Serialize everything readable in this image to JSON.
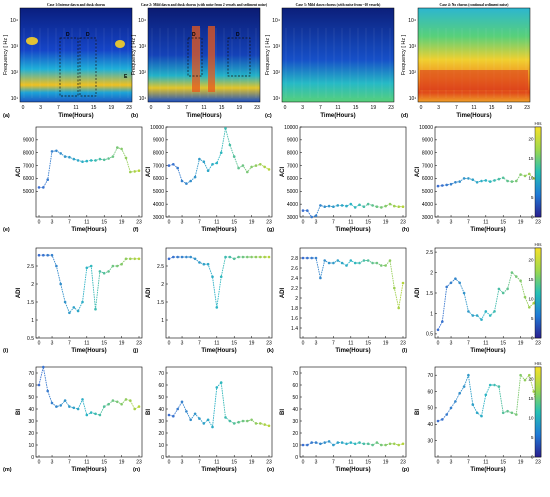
{
  "figure": {
    "row_spectro": {
      "xlabel": "Time(Hours)",
      "ylabel": "Frequency [ Hz ]",
      "x_ticks": [
        "0",
        "3",
        "7",
        "11",
        "15",
        "19",
        "23"
      ],
      "y_ticks": [
        "10¹",
        "10²",
        "10³",
        "10⁴"
      ],
      "panels": [
        {
          "tag": "(a)",
          "title": "Case 1:Intense dawn and dusk chorus",
          "box_labels": [
            "D",
            "D",
            "E"
          ],
          "style": "case1"
        },
        {
          "tag": "(b)",
          "title": "Case 2: Mild dawn and dusk chorus (with noise from 2 vessels and sediment noise)",
          "box_labels": [
            "D",
            "D"
          ],
          "style": "case2"
        },
        {
          "tag": "(c)",
          "title": "Case 3: Mild dawn chorus (with noise from ~10 vessels)",
          "box_labels": [],
          "style": "case3"
        },
        {
          "tag": "(d)",
          "title": "Case 4: No chorus (continual sediment noise)",
          "box_labels": [],
          "style": "case4"
        }
      ]
    },
    "colorbar": {
      "unit": "Hrs",
      "ticks": [
        "0",
        "5",
        "10",
        "15",
        "20"
      ],
      "range": [
        0,
        23
      ]
    },
    "colors": {
      "cmap_start": "#2a1f8f",
      "cmap_mid": "#26c0b5",
      "cmap_end": "#f6e12a",
      "line": "#3a4f9e"
    }
  },
  "chart_data": [
    {
      "type": "line",
      "tag": "(e)",
      "ylabel": "ACI",
      "xlabel": "Time(Hours)",
      "ylim": [
        3000,
        10000
      ],
      "y_ticks": [
        5000,
        6000,
        7000,
        8000,
        9000
      ],
      "x": [
        0,
        1,
        2,
        3,
        4,
        5,
        6,
        7,
        8,
        9,
        10,
        11,
        12,
        13,
        14,
        15,
        16,
        17,
        18,
        19,
        20,
        21,
        22,
        23
      ],
      "values": [
        5300,
        5300,
        5900,
        8100,
        8150,
        7950,
        7700,
        7650,
        7500,
        7400,
        7300,
        7350,
        7400,
        7400,
        7500,
        7450,
        7550,
        7700,
        8400,
        8300,
        7600,
        6500,
        6550,
        6600
      ]
    },
    {
      "type": "line",
      "tag": "(f)",
      "ylabel": "ACI",
      "xlabel": "Time(Hours)",
      "ylim": [
        3000,
        10000
      ],
      "y_ticks": [
        3000,
        4000,
        5000,
        6000,
        7000,
        8000,
        9000,
        10000
      ],
      "x": [
        0,
        1,
        2,
        3,
        4,
        5,
        6,
        7,
        8,
        9,
        10,
        11,
        12,
        13,
        14,
        15,
        16,
        17,
        18,
        19,
        20,
        21,
        22,
        23
      ],
      "values": [
        7000,
        7100,
        6800,
        5800,
        5600,
        5800,
        6100,
        7500,
        7300,
        6600,
        7100,
        7200,
        8000,
        9900,
        8600,
        7700,
        6800,
        7000,
        6500,
        6900,
        7000,
        7100,
        6900,
        6700
      ]
    },
    {
      "type": "line",
      "tag": "(g)",
      "ylabel": "ACI",
      "xlabel": "Time(Hours)",
      "ylim": [
        3000,
        10000
      ],
      "y_ticks": [
        3000,
        4000,
        5000,
        6000,
        7000,
        8000,
        9000,
        10000
      ],
      "x": [
        0,
        1,
        2,
        3,
        4,
        5,
        6,
        7,
        8,
        9,
        10,
        11,
        12,
        13,
        14,
        15,
        16,
        17,
        18,
        19,
        20,
        21,
        22,
        23
      ],
      "values": [
        3500,
        3500,
        3000,
        3100,
        3900,
        3800,
        3850,
        3800,
        3900,
        3900,
        3850,
        4000,
        3750,
        3950,
        3800,
        4000,
        3900,
        3800,
        3750,
        3850,
        4000,
        3850,
        3800,
        3800
      ]
    },
    {
      "type": "line",
      "tag": "(h)",
      "ylabel": "ACI",
      "xlabel": "Time(Hours)",
      "ylim": [
        3000,
        10000
      ],
      "y_ticks": [
        3000,
        4000,
        5000,
        6000,
        7000,
        8000,
        9000,
        10000
      ],
      "x": [
        0,
        1,
        2,
        3,
        4,
        5,
        6,
        7,
        8,
        9,
        10,
        11,
        12,
        13,
        14,
        15,
        16,
        17,
        18,
        19,
        20,
        21,
        22,
        23
      ],
      "values": [
        5400,
        5450,
        5500,
        5550,
        5700,
        5750,
        6000,
        6000,
        5900,
        5700,
        5800,
        5850,
        5750,
        5850,
        5950,
        6050,
        5800,
        5750,
        5800,
        6300,
        6200,
        6350,
        6000,
        5950
      ]
    },
    {
      "type": "line",
      "tag": "(i)",
      "ylabel": "ADI",
      "xlabel": "Time(Hours)",
      "ylim": [
        0.5,
        3.0
      ],
      "y_ticks": [
        0.5,
        1,
        1.5,
        2,
        2.5
      ],
      "x": [
        0,
        1,
        2,
        3,
        4,
        5,
        6,
        7,
        8,
        9,
        10,
        11,
        12,
        13,
        14,
        15,
        16,
        17,
        18,
        19,
        20,
        21,
        22,
        23
      ],
      "values": [
        2.8,
        2.8,
        2.8,
        2.8,
        2.5,
        2.0,
        1.5,
        1.2,
        1.35,
        1.25,
        1.5,
        2.45,
        2.5,
        1.3,
        2.35,
        2.3,
        2.35,
        2.5,
        2.5,
        2.55,
        2.7,
        2.7,
        2.7,
        2.7
      ]
    },
    {
      "type": "line",
      "tag": "(j)",
      "ylabel": "ADI",
      "xlabel": "Time(Hours)",
      "ylim": [
        0.5,
        3.0
      ],
      "y_ticks": [
        1,
        1.5,
        2,
        2.5
      ],
      "x": [
        0,
        1,
        2,
        3,
        4,
        5,
        6,
        7,
        8,
        9,
        10,
        11,
        12,
        13,
        14,
        15,
        16,
        17,
        18,
        19,
        20,
        21,
        22,
        23
      ],
      "values": [
        2.7,
        2.75,
        2.75,
        2.75,
        2.75,
        2.75,
        2.7,
        2.6,
        2.55,
        2.55,
        2.2,
        1.35,
        2.2,
        2.75,
        2.75,
        2.7,
        2.75,
        2.75,
        2.75,
        2.75,
        2.75,
        2.75,
        2.75,
        2.75
      ]
    },
    {
      "type": "line",
      "tag": "(k)",
      "ylabel": "ADI",
      "xlabel": "Time(Hours)",
      "ylim": [
        1.2,
        3.0
      ],
      "y_ticks": [
        1.4,
        1.6,
        1.8,
        2,
        2.2,
        2.4,
        2.6,
        2.8
      ],
      "x": [
        0,
        1,
        2,
        3,
        4,
        5,
        6,
        7,
        8,
        9,
        10,
        11,
        12,
        13,
        14,
        15,
        16,
        17,
        18,
        19,
        20,
        21,
        22,
        23
      ],
      "values": [
        2.8,
        2.8,
        2.8,
        2.8,
        2.4,
        2.75,
        2.7,
        2.7,
        2.75,
        2.7,
        2.65,
        2.75,
        2.7,
        2.7,
        2.75,
        2.75,
        2.7,
        2.7,
        2.65,
        2.65,
        2.75,
        2.2,
        1.8,
        2.3
      ]
    },
    {
      "type": "line",
      "tag": "(l)",
      "ylabel": "ADI",
      "xlabel": "Time(Hours)",
      "ylim": [
        0.4,
        2.6
      ],
      "y_ticks": [
        0.5,
        1,
        1.5,
        2,
        2.5
      ],
      "x": [
        0,
        1,
        2,
        3,
        4,
        5,
        6,
        7,
        8,
        9,
        10,
        11,
        12,
        13,
        14,
        15,
        16,
        17,
        18,
        19,
        20,
        21,
        22,
        23
      ],
      "values": [
        0.6,
        0.8,
        1.65,
        1.75,
        1.85,
        1.75,
        1.5,
        1.05,
        0.95,
        0.95,
        0.85,
        1.05,
        0.95,
        1.05,
        1.6,
        1.5,
        1.6,
        2.0,
        1.9,
        1.8,
        1.4,
        1.15,
        1.25,
        1.5
      ]
    },
    {
      "type": "line",
      "tag": "(m)",
      "ylabel": "BI",
      "xlabel": "Time(Hours)",
      "ylim": [
        0,
        75
      ],
      "y_ticks": [
        0,
        10,
        20,
        30,
        40,
        50,
        60,
        70
      ],
      "x": [
        0,
        1,
        2,
        3,
        4,
        5,
        6,
        7,
        8,
        9,
        10,
        11,
        12,
        13,
        14,
        15,
        16,
        17,
        18,
        19,
        20,
        21,
        22,
        23
      ],
      "values": [
        60,
        75,
        55,
        45,
        42,
        43,
        47,
        42,
        41,
        40,
        48,
        35,
        37,
        36,
        35,
        42,
        44,
        47,
        46,
        44,
        48,
        47,
        40,
        42
      ]
    },
    {
      "type": "line",
      "tag": "(n)",
      "ylabel": "BI",
      "xlabel": "Time(Hours)",
      "ylim": [
        0,
        75
      ],
      "y_ticks": [
        0,
        10,
        20,
        30,
        40,
        50,
        60,
        70
      ],
      "x": [
        0,
        1,
        2,
        3,
        4,
        5,
        6,
        7,
        8,
        9,
        10,
        11,
        12,
        13,
        14,
        15,
        16,
        17,
        18,
        19,
        20,
        21,
        22,
        23
      ],
      "values": [
        35,
        34,
        40,
        46,
        38,
        31,
        36,
        32,
        28,
        31,
        25,
        58,
        62,
        33,
        30,
        28,
        29,
        30,
        30,
        31,
        28,
        28,
        27,
        26
      ]
    },
    {
      "type": "line",
      "tag": "(o)",
      "ylabel": "BI",
      "xlabel": "Time(Hours)",
      "ylim": [
        0,
        75
      ],
      "y_ticks": [
        0,
        10,
        20,
        30,
        40,
        50,
        60,
        70
      ],
      "x": [
        0,
        1,
        2,
        3,
        4,
        5,
        6,
        7,
        8,
        9,
        10,
        11,
        12,
        13,
        14,
        15,
        16,
        17,
        18,
        19,
        20,
        21,
        22,
        23
      ],
      "values": [
        10,
        10,
        12,
        12,
        11,
        12,
        13,
        10,
        12,
        12,
        11,
        12,
        11,
        12,
        11,
        11,
        10,
        12,
        10,
        10,
        11,
        11,
        10,
        11
      ]
    },
    {
      "type": "line",
      "tag": "(p)",
      "ylabel": "BI",
      "xlabel": "Time(Hours)",
      "ylim": [
        20,
        75
      ],
      "y_ticks": [
        30,
        40,
        50,
        60,
        70
      ],
      "x": [
        0,
        1,
        2,
        3,
        4,
        5,
        6,
        7,
        8,
        9,
        10,
        11,
        12,
        13,
        14,
        15,
        16,
        17,
        18,
        19,
        20,
        21,
        22,
        23
      ],
      "values": [
        42,
        43,
        46,
        50,
        54,
        59,
        63,
        70,
        52,
        47,
        45,
        58,
        64,
        64,
        63,
        47,
        48,
        47,
        46,
        70,
        67,
        70,
        60,
        47
      ]
    }
  ]
}
